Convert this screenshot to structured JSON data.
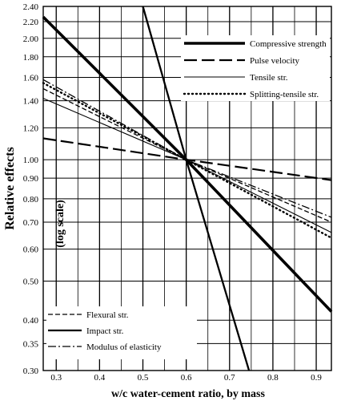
{
  "chart_data": {
    "type": "line",
    "title": "",
    "xlabel": "w/c water-cement ratio, by mass",
    "ylabel": "Relative effects",
    "ylabel_note": "(log scale)",
    "y_scale": "log",
    "xlim": [
      0.27,
      0.935
    ],
    "ylim": [
      0.3,
      2.4
    ],
    "x_ticks": [
      "0.3",
      "0.4",
      "0.5",
      "0.6",
      "0.7",
      "0.8",
      "0.9"
    ],
    "x_tick_values": [
      0.3,
      0.4,
      0.5,
      0.6,
      0.7,
      0.8,
      0.9
    ],
    "y_ticks": [
      "2.40",
      "2.20",
      "2.00",
      "1.80",
      "1.60",
      "1.40",
      "1.20",
      "1.00",
      "0.90",
      "0.80",
      "0.70",
      "0.60",
      "0.50",
      "0.40",
      "0.35",
      "0.30"
    ],
    "y_tick_values": [
      2.4,
      2.2,
      2.0,
      1.8,
      1.6,
      1.4,
      1.2,
      1.0,
      0.9,
      0.8,
      0.7,
      0.6,
      0.5,
      0.4,
      0.35,
      0.3
    ],
    "grid": true,
    "series": [
      {
        "name": "Compressive strength",
        "style": "thick-solid",
        "points": [
          [
            0.27,
            2.26
          ],
          [
            0.6,
            1.0
          ],
          [
            0.935,
            0.42
          ]
        ]
      },
      {
        "name": "Pulse velocity",
        "style": "long-dash",
        "points": [
          [
            0.27,
            1.13
          ],
          [
            0.6,
            1.0
          ],
          [
            0.935,
            0.89
          ]
        ]
      },
      {
        "name": "Tensile str.",
        "style": "thin-solid",
        "points": [
          [
            0.27,
            1.42
          ],
          [
            0.6,
            1.0
          ],
          [
            0.935,
            0.66
          ]
        ]
      },
      {
        "name": "Splitting-tensile str.",
        "style": "dotted",
        "points": [
          [
            0.27,
            1.55
          ],
          [
            0.6,
            1.0
          ],
          [
            0.935,
            0.64
          ]
        ]
      },
      {
        "name": "Flexural str.",
        "style": "short-dash",
        "points": [
          [
            0.27,
            1.5
          ],
          [
            0.6,
            1.0
          ],
          [
            0.935,
            0.7
          ]
        ]
      },
      {
        "name": "Impact str.",
        "style": "medium-solid",
        "points": [
          [
            0.5,
            2.4
          ],
          [
            0.6,
            1.0
          ],
          [
            0.745,
            0.3
          ]
        ]
      },
      {
        "name": "Modulus of elasticity",
        "style": "dash-dot",
        "points": [
          [
            0.27,
            1.58
          ],
          [
            0.6,
            1.0
          ],
          [
            0.935,
            0.72
          ]
        ]
      }
    ],
    "legend_top": [
      "Compressive strength",
      "Pulse velocity",
      "Tensile str.",
      "Splitting-tensile str."
    ],
    "legend_bottom": [
      "Flexural str.",
      "Impact str.",
      "Modulus of elasticity"
    ],
    "legend_placement": [
      "top-right",
      "bottom-left"
    ]
  }
}
